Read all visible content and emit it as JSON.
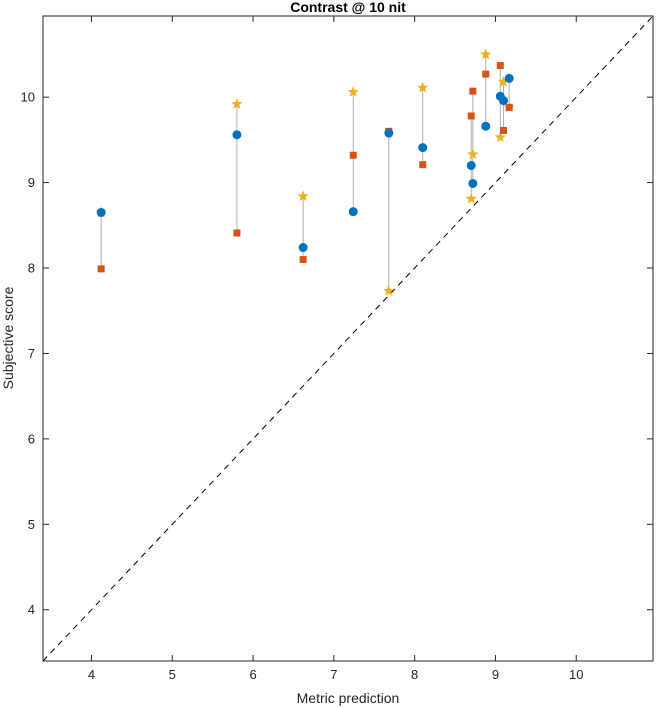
{
  "chart_data": {
    "type": "scatter",
    "title": "Contrast @ 10 nit",
    "xlabel": "Metric prediction",
    "ylabel": "Subjective score",
    "xlim": [
      3.4,
      10.95
    ],
    "ylim": [
      3.4,
      10.95
    ],
    "xticks": [
      4,
      5,
      6,
      7,
      8,
      9,
      10
    ],
    "yticks": [
      4,
      5,
      6,
      7,
      8,
      9,
      10
    ],
    "grid": false,
    "reference_line": "y = x (dashed)",
    "colors": {
      "circle": "#0072BD",
      "square": "#D95319",
      "star": "#EDB120",
      "connector": "#b0b0b0",
      "axis": "#262626"
    },
    "x": [
      4.12,
      5.8,
      6.62,
      7.24,
      7.68,
      8.1,
      8.7,
      8.72,
      8.88,
      9.06,
      9.1,
      9.17
    ],
    "series": [
      {
        "name": "circle",
        "marker": "circle",
        "values": [
          8.65,
          9.56,
          8.24,
          8.66,
          9.58,
          9.41,
          9.2,
          8.99,
          9.66,
          10.01,
          9.96,
          10.22
        ]
      },
      {
        "name": "square",
        "marker": "square",
        "values": [
          7.99,
          8.41,
          8.1,
          9.32,
          9.6,
          9.21,
          9.78,
          10.07,
          10.27,
          10.37,
          9.61,
          9.88
        ]
      },
      {
        "name": "star",
        "marker": "star",
        "values": [
          8.65,
          9.92,
          8.84,
          10.06,
          7.73,
          10.11,
          8.81,
          9.33,
          10.5,
          9.53,
          10.18,
          9.88
        ]
      }
    ]
  }
}
